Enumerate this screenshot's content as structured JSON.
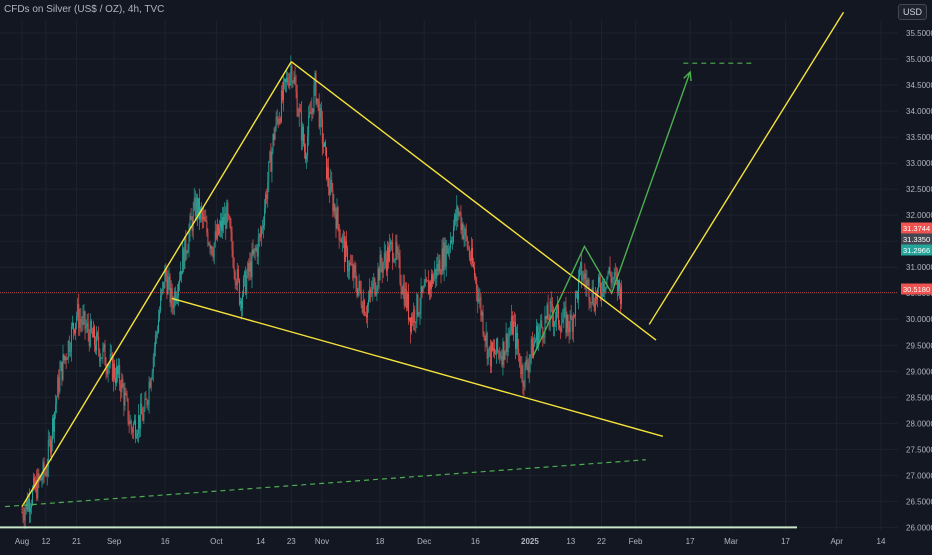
{
  "chart_title": "CFDs on Silver (US$ / OZ), 4h, TVC",
  "currency_button": "USD",
  "colors": {
    "background": "#131722",
    "grid": "#1e222d",
    "up": "#26a69a",
    "down": "#ef5350",
    "trendline": "#f5e33a",
    "projection": "#4caf50",
    "price_line": "#ef5350"
  },
  "chart_data": {
    "type": "candlestick",
    "x_ticks": [
      "Aug",
      "12",
      "21",
      "Sep",
      "16",
      "Oct",
      "14",
      "23",
      "Nov",
      "18",
      "Dec",
      "16",
      "2025",
      "13",
      "22",
      "Feb",
      "17",
      "Mar",
      "17",
      "Apr",
      "14"
    ],
    "y_ticks": [
      "26.0000",
      "26.5000",
      "27.0000",
      "27.5000",
      "28.0000",
      "28.5000",
      "29.0000",
      "29.5000",
      "30.0000",
      "30.5000",
      "31.0000",
      "31.5000",
      "32.0000",
      "32.5000",
      "33.0000",
      "33.5000",
      "34.0000",
      "34.5000",
      "35.0000",
      "35.5000"
    ],
    "ylim": [
      25.95,
      35.75
    ],
    "price_labels": [
      {
        "value": 31.3744,
        "text": "31.3744",
        "color": "#ef5350"
      },
      {
        "value": 31.335,
        "text": "31.3350",
        "color": "#434651"
      },
      {
        "value": 31.2966,
        "text": "31.2966",
        "color": "#26a69a"
      },
      {
        "value": 30.518,
        "text": "30.5180",
        "color": "#ef5350"
      }
    ],
    "anchors": [
      {
        "x": "Aug 5",
        "y": 26.3
      },
      {
        "x": "Aug 12",
        "y": 27.1
      },
      {
        "x": "Aug 16",
        "y": 28.9
      },
      {
        "x": "Aug 21",
        "y": 30.1
      },
      {
        "x": "Aug 26",
        "y": 29.6
      },
      {
        "x": "Sep 3",
        "y": 28.8
      },
      {
        "x": "Sep 6",
        "y": 27.9
      },
      {
        "x": "Sep 10",
        "y": 28.2
      },
      {
        "x": "Sep 16",
        "y": 30.9
      },
      {
        "x": "Sep 18",
        "y": 30.3
      },
      {
        "x": "Sep 25",
        "y": 32.2
      },
      {
        "x": "Sep 30",
        "y": 31.4
      },
      {
        "x": "Oct 4",
        "y": 32.0
      },
      {
        "x": "Oct 8",
        "y": 30.4
      },
      {
        "x": "Oct 14",
        "y": 31.6
      },
      {
        "x": "Oct 18",
        "y": 33.6
      },
      {
        "x": "Oct 23",
        "y": 34.9
      },
      {
        "x": "Oct 27",
        "y": 33.2
      },
      {
        "x": "Oct 30",
        "y": 34.5
      },
      {
        "x": "Nov 3",
        "y": 32.6
      },
      {
        "x": "Nov 8",
        "y": 31.2
      },
      {
        "x": "Nov 14",
        "y": 30.2
      },
      {
        "x": "Nov 18",
        "y": 31.0
      },
      {
        "x": "Nov 22",
        "y": 31.4
      },
      {
        "x": "Nov 27",
        "y": 30.0
      },
      {
        "x": "Dec 2",
        "y": 30.6
      },
      {
        "x": "Dec 8",
        "y": 31.4
      },
      {
        "x": "Dec 11",
        "y": 32.1
      },
      {
        "x": "Dec 16",
        "y": 30.8
      },
      {
        "x": "Dec 20",
        "y": 29.3
      },
      {
        "x": "Dec 24",
        "y": 29.4
      },
      {
        "x": "Dec 27",
        "y": 29.9
      },
      {
        "x": "Dec 30",
        "y": 28.9
      },
      {
        "x": "Jan 3",
        "y": 29.7
      },
      {
        "x": "Jan 7",
        "y": 30.1
      },
      {
        "x": "Jan 13",
        "y": 29.9
      },
      {
        "x": "Jan 16",
        "y": 30.9
      },
      {
        "x": "Jan 20",
        "y": 30.4
      },
      {
        "x": "Jan 24",
        "y": 30.9
      },
      {
        "x": "Jan 28",
        "y": 30.5
      }
    ],
    "drawings": {
      "trendlines": [
        {
          "name": "rise-line",
          "from": {
            "x": "Aug 5",
            "y": 26.4
          },
          "to": {
            "x": "Oct 23",
            "y": 34.95
          }
        },
        {
          "name": "wedge-upper",
          "from": {
            "x": "Oct 23",
            "y": 34.95
          },
          "to": {
            "x": "Feb 7",
            "y": 29.6
          }
        },
        {
          "name": "wedge-lower",
          "from": {
            "x": "Sep 18",
            "y": 30.4
          },
          "to": {
            "x": "Feb 9",
            "y": 27.75
          }
        },
        {
          "name": "target-line",
          "from": {
            "x": "Feb 5",
            "y": 29.9
          },
          "to": {
            "x": "Apr 3",
            "y": 35.9
          }
        }
      ],
      "dashed_lines": [
        {
          "name": "long-support",
          "from": {
            "x": "Jul 31",
            "y": 26.4
          },
          "to": {
            "x": "Feb 4",
            "y": 27.3
          }
        },
        {
          "name": "target-level",
          "from": {
            "x": "Feb 15",
            "y": 34.92
          },
          "to": {
            "x": "Mar 8",
            "y": 34.92
          }
        }
      ],
      "projection_path": [
        {
          "x": "Jan 2",
          "y": 29.3
        },
        {
          "x": "Jan 17",
          "y": 31.4
        },
        {
          "x": "Jan 25",
          "y": 30.5
        },
        {
          "x": "Feb 17",
          "y": 34.75
        }
      ],
      "green_hline": {
        "y": 26.0
      }
    }
  }
}
